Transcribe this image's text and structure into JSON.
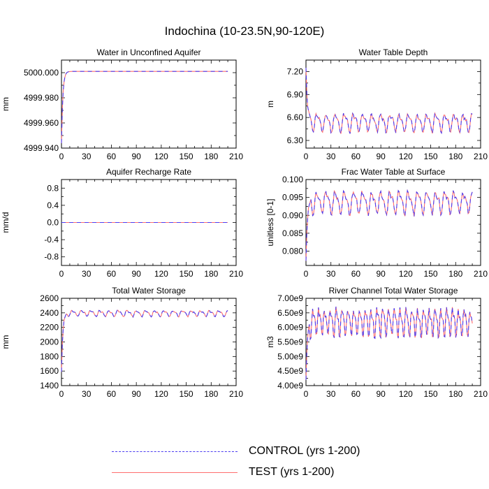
{
  "figure_title": "Indochina (10-23.5N,90-120E)",
  "legend": [
    {
      "label": "CONTROL (yrs 1-200)",
      "color": "#4b3cf0",
      "dash": true
    },
    {
      "label": "TEST (yrs 1-200)",
      "color": "#ff6e6e",
      "dash": false
    }
  ],
  "chart_data": [
    {
      "type": "line",
      "title": "Water in Unconfined Aquifer",
      "xlabel": "",
      "ylabel": "mm",
      "xlim": [
        0,
        210
      ],
      "ylim": [
        4999.94,
        5000.01
      ],
      "xticks": [
        0,
        30,
        60,
        90,
        120,
        150,
        180,
        210
      ],
      "yticks": [
        4999.94,
        4999.96,
        4999.98,
        5000.0
      ],
      "ytick_labels": [
        "4999.940",
        "4999.960",
        "4999.980",
        "5000.000"
      ],
      "pattern": "rise",
      "start": 4999.944,
      "plateau": 5000.001,
      "seasonal_amp": 0.0,
      "period": 0,
      "series": [
        {
          "name": "CONTROL (yrs 1-200)"
        },
        {
          "name": "TEST (yrs 1-200)"
        }
      ]
    },
    {
      "type": "line",
      "title": "Water Table Depth",
      "xlabel": "",
      "ylabel": "m",
      "xlim": [
        0,
        210
      ],
      "ylim": [
        6.2,
        7.35
      ],
      "xticks": [
        0,
        30,
        60,
        90,
        120,
        150,
        180,
        210
      ],
      "yticks": [
        6.3,
        6.6,
        6.9,
        7.2
      ],
      "ytick_labels": [
        "6.30",
        "6.60",
        "6.90",
        "7.20"
      ],
      "pattern": "decay",
      "start": 7.25,
      "plateau": 6.54,
      "seasonal_amp": 0.13,
      "period": 11,
      "series": [
        {
          "name": "CONTROL (yrs 1-200)"
        },
        {
          "name": "TEST (yrs 1-200)"
        }
      ]
    },
    {
      "type": "line",
      "title": "Aquifer Recharge Rate",
      "xlabel": "",
      "ylabel": "mm/d",
      "xlim": [
        0,
        210
      ],
      "ylim": [
        -1.0,
        1.0
      ],
      "xticks": [
        0,
        30,
        60,
        90,
        120,
        150,
        180,
        210
      ],
      "yticks": [
        -0.8,
        -0.4,
        0.0,
        0.4,
        0.8
      ],
      "ytick_labels": [
        "-0.8",
        "-0.4",
        "0.0",
        "0.4",
        "0.8"
      ],
      "pattern": "flat",
      "start": 0.0,
      "plateau": 0.0,
      "seasonal_amp": 0.0,
      "period": 0,
      "series": [
        {
          "name": "CONTROL (yrs 1-200)"
        },
        {
          "name": "TEST (yrs 1-200)"
        }
      ]
    },
    {
      "type": "line",
      "title": "Frac Water Table at Surface",
      "xlabel": "",
      "ylabel": "unitless [0-1]",
      "xlim": [
        0,
        210
      ],
      "ylim": [
        0.076,
        0.1
      ],
      "xticks": [
        0,
        30,
        60,
        90,
        120,
        150,
        180,
        210
      ],
      "yticks": [
        0.08,
        0.085,
        0.09,
        0.095,
        0.1
      ],
      "ytick_labels": [
        "0.080",
        "0.085",
        "0.090",
        "0.095",
        "0.100"
      ],
      "pattern": "rise",
      "start": 0.0773,
      "plateau": 0.0938,
      "seasonal_amp": 0.0035,
      "period": 11,
      "series": [
        {
          "name": "CONTROL (yrs 1-200)"
        },
        {
          "name": "TEST (yrs 1-200)"
        }
      ]
    },
    {
      "type": "line",
      "title": "Total Water Storage",
      "xlabel": "",
      "ylabel": "mm",
      "xlim": [
        0,
        210
      ],
      "ylim": [
        1400,
        2600
      ],
      "xticks": [
        0,
        30,
        60,
        90,
        120,
        150,
        180,
        210
      ],
      "yticks": [
        1400,
        1600,
        1800,
        2000,
        2200,
        2400,
        2600
      ],
      "ytick_labels": [
        "1400",
        "1600",
        "1800",
        "2000",
        "2200",
        "2400",
        "2600"
      ],
      "pattern": "rise",
      "start": 1590,
      "plateau": 2395,
      "seasonal_amp": 45,
      "period": 11,
      "series": [
        {
          "name": "CONTROL (yrs 1-200)"
        },
        {
          "name": "TEST (yrs 1-200)"
        }
      ]
    },
    {
      "type": "line",
      "title": "River Channel Total Water Storage",
      "xlabel": "",
      "ylabel": "m3",
      "xlim": [
        0,
        210
      ],
      "ylim": [
        4000000000,
        7000000000
      ],
      "xticks": [
        0,
        30,
        60,
        90,
        120,
        150,
        180,
        210
      ],
      "yticks": [
        4000000000,
        4500000000,
        5000000000,
        5500000000,
        6000000000,
        6500000000,
        7000000000
      ],
      "ytick_labels": [
        "4.00e9",
        "4.50e9",
        "5.00e9",
        "5.50e9",
        "6.00e9",
        "6.50e9",
        "7.00e9"
      ],
      "pattern": "rise",
      "start": 4200000000,
      "plateau": 6200000000,
      "seasonal_amp": 550000000,
      "period": 7,
      "series": [
        {
          "name": "CONTROL (yrs 1-200)"
        },
        {
          "name": "TEST (yrs 1-200)"
        }
      ]
    }
  ]
}
